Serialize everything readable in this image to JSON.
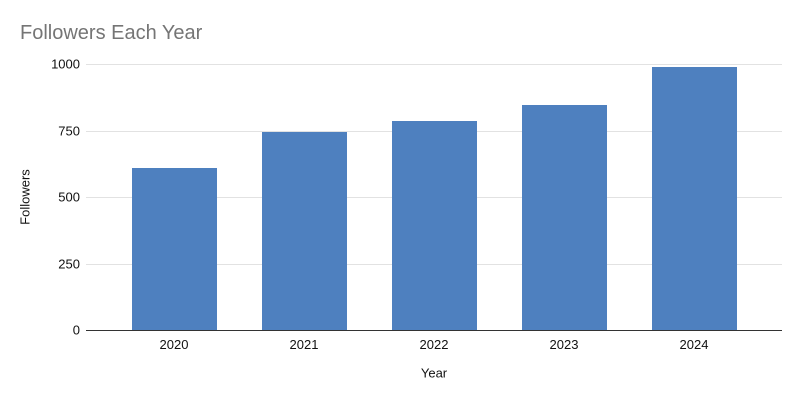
{
  "colors": {
    "bar": "#4e80bf",
    "title_text": "#757575",
    "tick_text": "#111111",
    "gridline": "#e2e2e2",
    "zero_axis_line": "#333333",
    "background": "#ffffff"
  },
  "chart_data": {
    "type": "bar",
    "title": "Followers Each Year",
    "xlabel": "Year",
    "ylabel": "Followers",
    "categories": [
      "2020",
      "2021",
      "2022",
      "2023",
      "2024"
    ],
    "values": [
      610,
      745,
      785,
      845,
      990
    ],
    "ylim": [
      0,
      1000
    ],
    "yticks": [
      0,
      250,
      500,
      750,
      1000
    ],
    "grid": true,
    "legend": "none"
  }
}
